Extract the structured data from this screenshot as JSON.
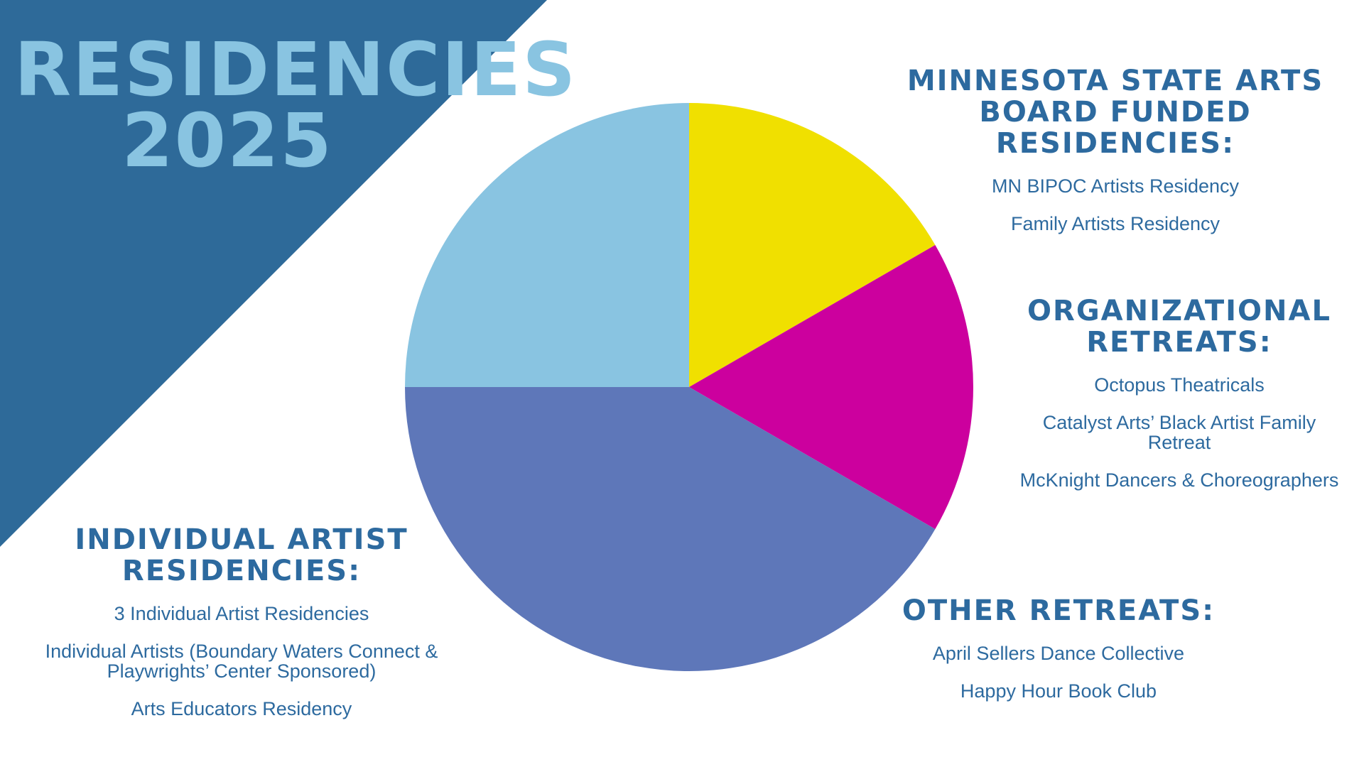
{
  "title": {
    "line1": "RESIDENCIES",
    "line2": "2025"
  },
  "colors": {
    "background": "#ffffff",
    "triangle": "#2e6a99",
    "title": "#89c4e1",
    "heading_text": "#2d6a9f"
  },
  "groups": {
    "mn": {
      "heading": "MINNESOTA STATE ARTS BOARD FUNDED RESIDENCIES:",
      "items": [
        "MN BIPOC Artists Residency",
        "Family Artists Residency"
      ]
    },
    "org": {
      "heading": "ORGANIZATIONAL RETREATS:",
      "items": [
        "Octopus Theatricals",
        "Catalyst Arts’ Black Artist Family Retreat",
        "McKnight Dancers & Choreographers"
      ]
    },
    "other": {
      "heading": "OTHER RETREATS:",
      "items": [
        "April Sellers Dance Collective",
        "Happy Hour Book Club"
      ]
    },
    "ind": {
      "heading": "INDIVIDUAL ARTIST RESIDENCIES:",
      "items": [
        "3 Individual Artist Residencies",
        "Individual Artists (Boundary Waters Connect & Playwrights’ Center Sponsored)",
        "Arts Educators Residency"
      ]
    }
  },
  "chart_data": {
    "type": "pie",
    "labels": [
      "",
      "",
      "",
      ""
    ],
    "values": [
      2,
      2,
      5,
      3
    ],
    "colors": [
      "#f0e000",
      "#cc009e",
      "#5e77b9",
      "#89c4e1"
    ],
    "start": "top, clockwise"
  }
}
